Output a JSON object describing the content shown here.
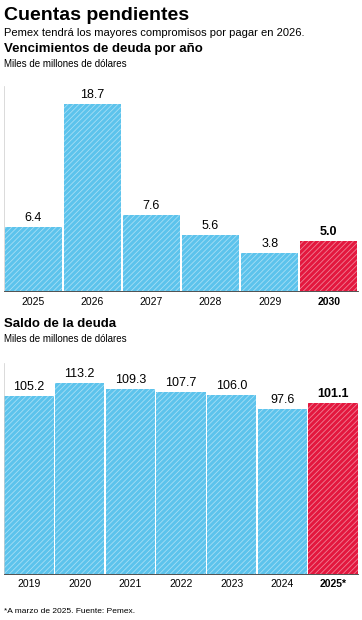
{
  "title": "Cuentas pendientes",
  "subtitle": "Pemex tendrá los mayores compromisos por pagar en 2026.",
  "note": "*A marzo de 2025. Fuente: Pemex.",
  "chart_data": [
    {
      "type": "bar",
      "title": "Vencimientos de deuda por año",
      "subtitle": "Miles de millones de dólares",
      "categories": [
        "2025",
        "2026",
        "2027",
        "2028",
        "2029",
        "2030"
      ],
      "values": [
        6.4,
        18.7,
        7.6,
        5.6,
        3.8,
        5.0
      ],
      "colors": [
        "#5cc3ec",
        "#5cc3ec",
        "#5cc3ec",
        "#5cc3ec",
        "#5cc3ec",
        "#e3173e"
      ],
      "ylim": [
        0,
        20.5
      ],
      "yticks": [],
      "data_labels": true,
      "tick_labels": "x",
      "grid": false
    },
    {
      "type": "bar",
      "title": "Saldo de la deuda",
      "subtitle": "Miles de millones de dólares",
      "categories": [
        "2019",
        "2020",
        "2021",
        "2022",
        "2023",
        "2024",
        "2025*"
      ],
      "values": [
        105.2,
        113.2,
        109.3,
        107.7,
        106.0,
        97.6,
        101.1
      ],
      "colors": [
        "#5cc3ec",
        "#5cc3ec",
        "#5cc3ec",
        "#5cc3ec",
        "#5cc3ec",
        "#5cc3ec",
        "#e3173e"
      ],
      "ylim": [
        0,
        125
      ],
      "yticks": [],
      "data_labels": true,
      "tick_labels": "x",
      "grid": false
    }
  ]
}
